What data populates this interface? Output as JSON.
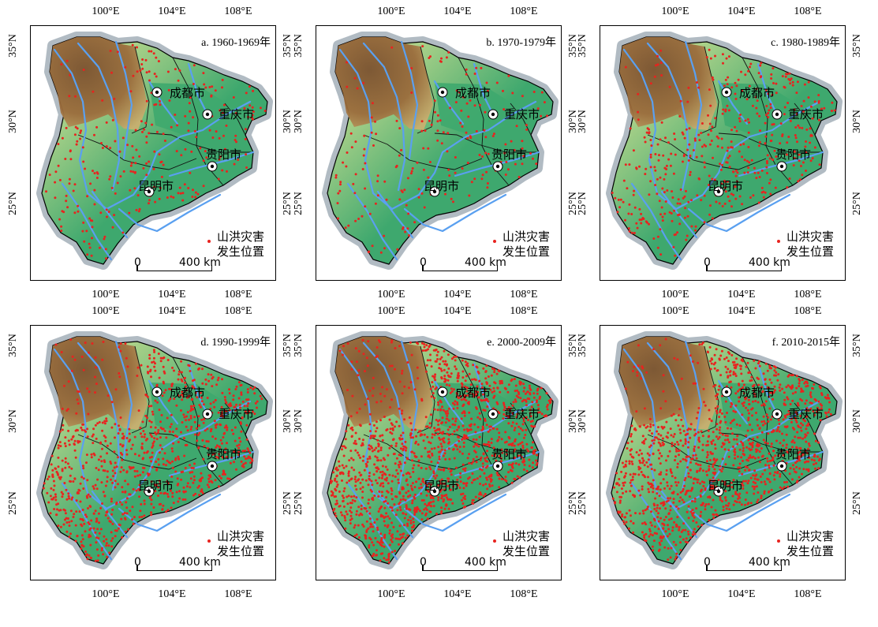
{
  "lon_labels": [
    "100°E",
    "104°E",
    "108°E"
  ],
  "lat_labels": [
    "35°N",
    "30°N",
    "25°N"
  ],
  "cities": [
    "成都市",
    "重庆市",
    "贵阳市",
    "昆明市"
  ],
  "legend": {
    "line1": "山洪灾害",
    "line2": "发生位置",
    "dot_color": "#e8231f"
  },
  "scale": {
    "zero": "0",
    "distance": "400 km"
  },
  "colors": {
    "low_terrain": "#3ea86e",
    "mid_terrain": "#f2ec9a",
    "high_terrain": "#9b6c3c",
    "river": "#5aa0f0",
    "border_glow": "#a8b4bc",
    "hazard_point": "#e8231f"
  },
  "panels": [
    {
      "title": "a. 1960-1969年",
      "density": 280
    },
    {
      "title": "b. 1970-1979年",
      "density": 200
    },
    {
      "title": "c. 1980-1989年",
      "density": 450
    },
    {
      "title": "d. 1990-1999年",
      "density": 950
    },
    {
      "title": "e. 2000-2009年",
      "density": 1400
    },
    {
      "title": "f. 2010-2015年",
      "density": 1250
    }
  ]
}
